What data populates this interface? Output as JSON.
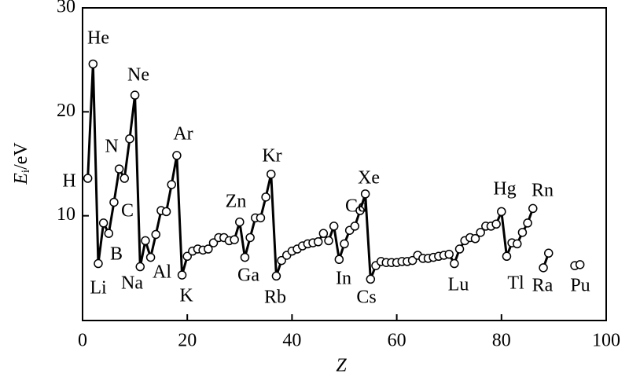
{
  "chart_data": {
    "type": "line",
    "xlabel": "Z",
    "ylabel": {
      "symbol": "E",
      "subscript": "i",
      "unit": "/eV"
    },
    "x": [
      1,
      2,
      3,
      4,
      5,
      6,
      7,
      8,
      9,
      10,
      11,
      12,
      13,
      14,
      15,
      16,
      17,
      18,
      19,
      20,
      21,
      22,
      23,
      24,
      25,
      26,
      27,
      28,
      29,
      30,
      31,
      32,
      33,
      34,
      35,
      36,
      37,
      38,
      39,
      40,
      41,
      42,
      43,
      44,
      45,
      46,
      47,
      48,
      49,
      50,
      51,
      52,
      53,
      54,
      55,
      56,
      57,
      58,
      59,
      60,
      61,
      62,
      63,
      64,
      65,
      66,
      67,
      68,
      69,
      70,
      71,
      72,
      73,
      74,
      75,
      76,
      77,
      78,
      79,
      80,
      81,
      82,
      83,
      84,
      85,
      86,
      87,
      88,
      89,
      90,
      91,
      92,
      93,
      94,
      95
    ],
    "values": [
      13.6,
      24.6,
      5.4,
      9.3,
      8.3,
      11.3,
      14.5,
      13.6,
      17.4,
      21.6,
      5.1,
      7.6,
      6.0,
      8.2,
      10.5,
      10.4,
      13.0,
      15.8,
      4.3,
      6.1,
      6.6,
      6.8,
      6.7,
      6.8,
      7.4,
      7.9,
      7.9,
      7.6,
      7.7,
      9.4,
      6.0,
      7.9,
      9.8,
      9.8,
      11.8,
      14.0,
      4.2,
      5.7,
      6.2,
      6.6,
      6.8,
      7.1,
      7.3,
      7.4,
      7.5,
      8.3,
      7.6,
      9.0,
      5.8,
      7.3,
      8.6,
      9.0,
      10.5,
      12.1,
      3.9,
      5.2,
      5.6,
      5.5,
      5.5,
      5.5,
      5.6,
      5.6,
      5.7,
      6.2,
      5.9,
      5.9,
      6.0,
      6.1,
      6.2,
      6.3,
      5.4,
      6.8,
      7.6,
      7.9,
      7.8,
      8.4,
      9.0,
      9.0,
      9.2,
      10.4,
      6.1,
      7.4,
      7.3,
      8.4,
      9.3,
      10.7,
      null,
      5.0,
      6.4,
      null,
      null,
      null,
      null,
      5.2,
      5.3
    ],
    "color": "#000000",
    "xlim": [
      0,
      100
    ],
    "xticks": [
      0,
      20,
      40,
      60,
      80,
      100
    ],
    "ylim": [
      0,
      30
    ],
    "yticks": [
      10,
      20,
      30
    ],
    "annotations": [
      "H",
      "He",
      "Li",
      "N",
      "B",
      "C",
      "Ne",
      "Na",
      "Al",
      "Ar",
      "K",
      "Zn",
      "Ga",
      "Kr",
      "Rb",
      "Cd",
      "In",
      "Xe",
      "Cs",
      "Lu",
      "Hg",
      "Tl",
      "Rn",
      "Ra",
      "Pu"
    ]
  }
}
